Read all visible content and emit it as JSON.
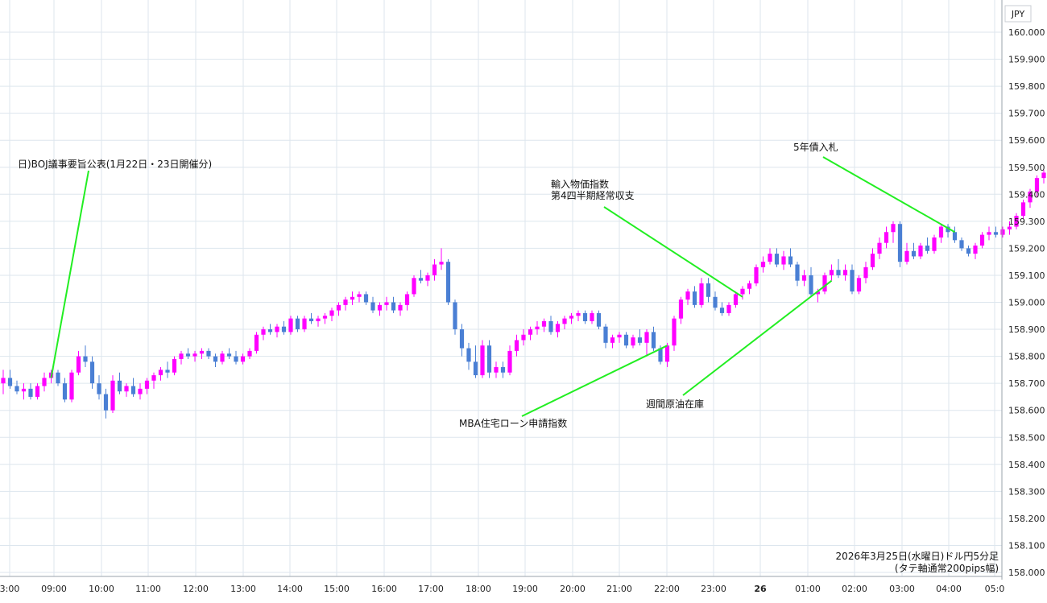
{
  "chart_data": {
    "type": "candlestick",
    "currency_label": "JPY",
    "caption_line1": "2026年3月25日(水曜日)ドル円5分足",
    "caption_line2": "(タテ軸通常200pips幅)",
    "ylim": [
      158.0,
      160.05
    ],
    "y_ticks": [
      "160.000",
      "159.900",
      "159.800",
      "159.700",
      "159.600",
      "159.500",
      "159.400",
      "159.300",
      "159.200",
      "159.100",
      "159.000",
      "158.900",
      "158.800",
      "158.700",
      "158.600",
      "158.500",
      "158.400",
      "158.300",
      "158.200",
      "158.100",
      "158.000"
    ],
    "x_ticks": [
      "3:00",
      "09:00",
      "10:00",
      "11:00",
      "12:00",
      "13:00",
      "14:00",
      "15:00",
      "16:00",
      "17:00",
      "18:00",
      "19:00",
      "20:00",
      "21:00",
      "22:00",
      "23:00",
      "26",
      "01:00",
      "02:00",
      "03:00",
      "04:00",
      "05:0"
    ],
    "grid": true,
    "colors": {
      "up": "#ff00ff",
      "down": "#4a7fd4",
      "leader": "#22ee22",
      "grid": "#dde6ee"
    },
    "ohlc_series": [
      [
        158.7,
        158.75,
        158.66,
        158.72
      ],
      [
        158.72,
        158.75,
        158.68,
        158.69
      ],
      [
        158.69,
        158.71,
        158.66,
        158.67
      ],
      [
        158.67,
        158.7,
        158.64,
        158.68
      ],
      [
        158.68,
        158.7,
        158.64,
        158.65
      ],
      [
        158.65,
        158.7,
        158.64,
        158.69
      ],
      [
        158.69,
        158.74,
        158.67,
        158.72
      ],
      [
        158.72,
        158.75,
        158.7,
        158.74
      ],
      [
        158.74,
        158.75,
        158.69,
        158.7
      ],
      [
        158.7,
        158.72,
        158.63,
        158.64
      ],
      [
        158.64,
        158.75,
        158.63,
        158.74
      ],
      [
        158.74,
        158.82,
        158.73,
        158.8
      ],
      [
        158.8,
        158.84,
        158.76,
        158.78
      ],
      [
        158.78,
        158.8,
        158.68,
        158.7
      ],
      [
        158.7,
        158.73,
        158.64,
        158.66
      ],
      [
        158.66,
        158.68,
        158.57,
        158.6
      ],
      [
        158.6,
        158.73,
        158.59,
        158.71
      ],
      [
        158.71,
        158.74,
        158.66,
        158.67
      ],
      [
        158.67,
        158.7,
        158.65,
        158.69
      ],
      [
        158.69,
        158.72,
        158.65,
        158.66
      ],
      [
        158.66,
        158.7,
        158.64,
        158.68
      ],
      [
        158.68,
        158.72,
        158.66,
        158.71
      ],
      [
        158.71,
        158.74,
        158.68,
        158.73
      ],
      [
        158.73,
        158.76,
        158.71,
        158.75
      ],
      [
        158.75,
        158.78,
        158.72,
        158.74
      ],
      [
        158.74,
        158.8,
        158.73,
        158.79
      ],
      [
        158.79,
        158.82,
        158.77,
        158.81
      ],
      [
        158.81,
        158.83,
        158.79,
        158.8
      ],
      [
        158.8,
        158.82,
        158.78,
        158.81
      ],
      [
        158.81,
        158.83,
        158.79,
        158.82
      ],
      [
        158.82,
        158.83,
        158.79,
        158.8
      ],
      [
        158.8,
        158.81,
        158.76,
        158.78
      ],
      [
        158.78,
        158.82,
        158.77,
        158.81
      ],
      [
        158.81,
        158.83,
        158.79,
        158.8
      ],
      [
        158.8,
        158.82,
        158.77,
        158.78
      ],
      [
        158.78,
        158.81,
        158.77,
        158.8
      ],
      [
        158.8,
        158.83,
        158.79,
        158.82
      ],
      [
        158.82,
        158.89,
        158.81,
        158.88
      ],
      [
        158.88,
        158.91,
        158.86,
        158.9
      ],
      [
        158.9,
        158.92,
        158.88,
        158.89
      ],
      [
        158.89,
        158.92,
        158.87,
        158.91
      ],
      [
        158.91,
        158.93,
        158.88,
        158.89
      ],
      [
        158.89,
        158.95,
        158.88,
        158.94
      ],
      [
        158.94,
        158.95,
        158.89,
        158.9
      ],
      [
        158.9,
        158.95,
        158.89,
        158.94
      ],
      [
        158.94,
        158.96,
        158.92,
        158.93
      ],
      [
        158.93,
        158.95,
        158.91,
        158.94
      ],
      [
        158.94,
        158.96,
        158.92,
        158.95
      ],
      [
        158.95,
        158.98,
        158.93,
        158.97
      ],
      [
        158.97,
        159.0,
        158.95,
        158.99
      ],
      [
        158.99,
        159.02,
        158.97,
        159.01
      ],
      [
        159.01,
        159.04,
        158.99,
        159.02
      ],
      [
        159.02,
        159.04,
        159.0,
        159.03
      ],
      [
        159.03,
        159.04,
        158.99,
        159.0
      ],
      [
        159.0,
        159.02,
        158.96,
        158.97
      ],
      [
        158.97,
        159.0,
        158.95,
        158.99
      ],
      [
        158.99,
        159.02,
        158.97,
        159.0
      ],
      [
        159.0,
        159.02,
        158.96,
        158.97
      ],
      [
        158.97,
        159.0,
        158.95,
        158.99
      ],
      [
        158.99,
        159.04,
        158.97,
        159.03
      ],
      [
        159.03,
        159.1,
        159.02,
        159.09
      ],
      [
        159.09,
        159.12,
        159.07,
        159.08
      ],
      [
        159.08,
        159.11,
        159.06,
        159.1
      ],
      [
        159.1,
        159.16,
        159.08,
        159.14
      ],
      [
        159.14,
        159.2,
        159.12,
        159.15
      ],
      [
        159.15,
        159.16,
        158.99,
        159.0
      ],
      [
        159.0,
        159.01,
        158.88,
        158.9
      ],
      [
        158.9,
        158.92,
        158.8,
        158.83
      ],
      [
        158.83,
        158.85,
        158.75,
        158.78
      ],
      [
        158.78,
        158.84,
        158.72,
        158.73
      ],
      [
        158.73,
        158.86,
        158.72,
        158.84
      ],
      [
        158.84,
        158.86,
        158.72,
        158.74
      ],
      [
        158.74,
        158.78,
        158.72,
        158.76
      ],
      [
        158.76,
        158.78,
        158.72,
        158.74
      ],
      [
        158.74,
        158.84,
        158.73,
        158.82
      ],
      [
        158.82,
        158.88,
        158.8,
        158.86
      ],
      [
        158.86,
        158.9,
        158.84,
        158.88
      ],
      [
        158.88,
        158.91,
        158.86,
        158.9
      ],
      [
        158.9,
        158.93,
        158.88,
        158.91
      ],
      [
        158.91,
        158.94,
        158.89,
        158.93
      ],
      [
        158.93,
        158.95,
        158.88,
        158.89
      ],
      [
        158.89,
        158.93,
        158.87,
        158.92
      ],
      [
        158.92,
        158.95,
        158.9,
        158.94
      ],
      [
        158.94,
        158.96,
        158.92,
        158.95
      ],
      [
        158.95,
        158.97,
        158.93,
        158.96
      ],
      [
        158.96,
        158.97,
        158.92,
        158.93
      ],
      [
        158.93,
        158.97,
        158.92,
        158.96
      ],
      [
        158.96,
        158.97,
        158.9,
        158.91
      ],
      [
        158.91,
        158.92,
        158.83,
        158.85
      ],
      [
        158.85,
        158.88,
        158.83,
        158.87
      ],
      [
        158.87,
        158.89,
        158.85,
        158.88
      ],
      [
        158.88,
        158.89,
        158.83,
        158.84
      ],
      [
        158.84,
        158.88,
        158.83,
        158.87
      ],
      [
        158.87,
        158.9,
        158.84,
        158.85
      ],
      [
        158.85,
        158.9,
        158.8,
        158.89
      ],
      [
        158.89,
        158.91,
        158.82,
        158.83
      ],
      [
        158.83,
        158.84,
        158.77,
        158.78
      ],
      [
        158.78,
        158.85,
        158.76,
        158.84
      ],
      [
        158.84,
        158.95,
        158.82,
        158.94
      ],
      [
        158.94,
        159.02,
        158.92,
        159.01
      ],
      [
        159.01,
        159.05,
        158.99,
        159.04
      ],
      [
        159.04,
        159.06,
        158.98,
        158.99
      ],
      [
        158.99,
        159.09,
        158.98,
        159.07
      ],
      [
        159.07,
        159.09,
        159.0,
        159.02
      ],
      [
        159.02,
        159.04,
        158.97,
        158.98
      ],
      [
        158.98,
        159.0,
        158.95,
        158.96
      ],
      [
        158.96,
        159.0,
        158.95,
        158.99
      ],
      [
        158.99,
        159.04,
        158.98,
        159.03
      ],
      [
        159.03,
        159.06,
        159.01,
        159.05
      ],
      [
        159.05,
        159.08,
        159.03,
        159.07
      ],
      [
        159.07,
        159.14,
        159.06,
        159.13
      ],
      [
        159.13,
        159.17,
        159.11,
        159.15
      ],
      [
        159.15,
        159.2,
        159.14,
        159.18
      ],
      [
        159.18,
        159.2,
        159.13,
        159.14
      ],
      [
        159.14,
        159.19,
        159.12,
        159.17
      ],
      [
        159.17,
        159.2,
        159.13,
        159.14
      ],
      [
        159.14,
        159.15,
        159.06,
        159.08
      ],
      [
        159.08,
        159.12,
        159.06,
        159.1
      ],
      [
        159.1,
        159.13,
        159.02,
        159.03
      ],
      [
        159.03,
        159.05,
        159.0,
        159.04
      ],
      [
        159.04,
        159.11,
        159.03,
        159.1
      ],
      [
        159.1,
        159.14,
        159.08,
        159.12
      ],
      [
        159.12,
        159.16,
        159.09,
        159.1
      ],
      [
        159.1,
        159.14,
        159.08,
        159.12
      ],
      [
        159.12,
        159.14,
        159.03,
        159.04
      ],
      [
        159.04,
        159.1,
        159.03,
        159.09
      ],
      [
        159.09,
        159.15,
        159.07,
        159.13
      ],
      [
        159.13,
        159.2,
        159.12,
        159.18
      ],
      [
        159.18,
        159.24,
        159.16,
        159.22
      ],
      [
        159.22,
        159.28,
        159.2,
        159.26
      ],
      [
        159.26,
        159.3,
        159.22,
        159.29
      ],
      [
        159.29,
        159.3,
        159.13,
        159.15
      ],
      [
        159.15,
        159.22,
        159.14,
        159.19
      ],
      [
        159.19,
        159.22,
        159.16,
        159.17
      ],
      [
        159.17,
        159.22,
        159.16,
        159.21
      ],
      [
        159.21,
        159.24,
        159.18,
        159.19
      ],
      [
        159.19,
        159.25,
        159.18,
        159.24
      ],
      [
        159.24,
        159.29,
        159.22,
        159.28
      ],
      [
        159.28,
        159.29,
        159.24,
        159.26
      ],
      [
        159.26,
        159.28,
        159.22,
        159.23
      ],
      [
        159.23,
        159.24,
        159.19,
        159.2
      ],
      [
        159.2,
        159.21,
        159.17,
        159.18
      ],
      [
        159.18,
        159.22,
        159.16,
        159.21
      ],
      [
        159.21,
        159.26,
        159.2,
        159.25
      ],
      [
        159.25,
        159.28,
        159.23,
        159.26
      ],
      [
        159.26,
        159.28,
        159.24,
        159.25
      ],
      [
        159.25,
        159.28,
        159.24,
        159.27
      ],
      [
        159.27,
        159.3,
        159.25,
        159.28
      ],
      [
        159.28,
        159.33,
        159.27,
        159.32
      ],
      [
        159.32,
        159.38,
        159.31,
        159.37
      ],
      [
        159.37,
        159.42,
        159.35,
        159.41
      ],
      [
        159.41,
        159.47,
        159.39,
        159.46
      ],
      [
        159.46,
        159.49,
        159.44,
        159.48
      ],
      [
        159.48,
        159.5,
        159.43,
        159.44
      ],
      [
        159.44,
        159.47,
        159.43,
        159.46
      ],
      [
        159.46,
        159.48,
        159.44,
        159.45
      ],
      [
        159.45,
        159.48,
        159.44,
        159.47
      ],
      [
        159.47,
        159.49,
        159.45,
        159.46
      ],
      [
        159.46,
        159.49,
        159.44,
        159.48
      ],
      [
        159.48,
        159.49,
        159.45,
        159.47
      ]
    ],
    "annotations": [
      {
        "lines": [
          "日)BOJ議事要旨公表(1月22日・23日開催分)"
        ],
        "point_index": 7,
        "point_price": 158.72
      },
      {
        "lines": [
          "MBA住宅ローン申請指数"
        ],
        "point_index": 97,
        "point_price": 158.84
      },
      {
        "lines": [
          "輸入物価指数",
          "第4四半期経常収支"
        ],
        "point_index": 108,
        "point_price": 159.02
      },
      {
        "lines": [
          "週間原油在庫"
        ],
        "point_index": 121,
        "point_price": 159.08
      },
      {
        "lines": [
          "5年債入札"
        ],
        "point_index": 139,
        "point_price": 159.26
      }
    ]
  }
}
